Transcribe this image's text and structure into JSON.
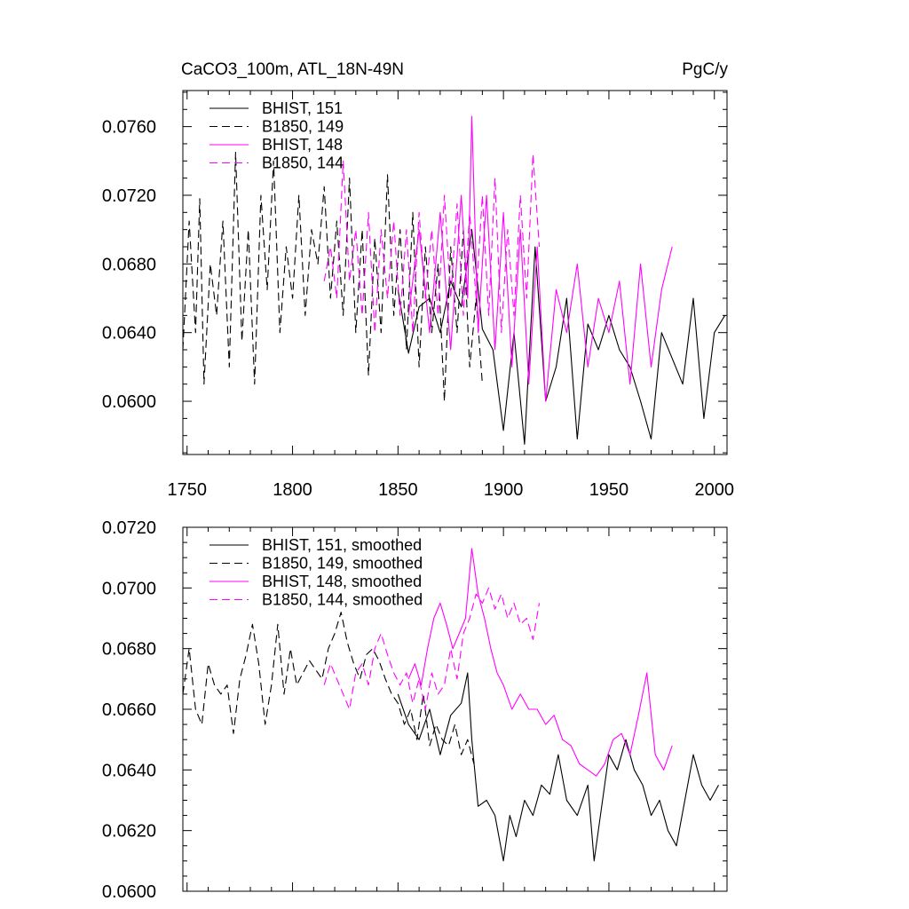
{
  "chart_data": [
    {
      "type": "line",
      "title": "CaCO3_100m, ATL_18N-49N",
      "units": "PgC/y",
      "xlim": [
        1748,
        2006
      ],
      "ylim": [
        0.0569,
        0.0781
      ],
      "x_ticks": [
        1750,
        1800,
        1850,
        1900,
        1950,
        2000
      ],
      "y_ticks": [
        0.06,
        0.064,
        0.068,
        0.072,
        0.076
      ],
      "y_tick_labels": [
        "0.0600",
        "0.0640",
        "0.0680",
        "0.0720",
        "0.0760"
      ],
      "x_tick_labels": [
        "1750",
        "1800",
        "1850",
        "1900",
        "1950",
        "2000"
      ],
      "legend_placement": "top-left",
      "series": [
        {
          "name": "BHIST, 151",
          "color": "#000000",
          "dash": "solid",
          "x": [
            1850,
            1855,
            1860,
            1865,
            1870,
            1875,
            1880,
            1885,
            1890,
            1895,
            1900,
            1905,
            1910,
            1915,
            1920,
            1925,
            1930,
            1935,
            1940,
            1945,
            1950,
            1955,
            1960,
            1965,
            1970,
            1975,
            1980,
            1985,
            1990,
            1995,
            2000,
            2005
          ],
          "y": [
            0.0665,
            0.0628,
            0.0655,
            0.066,
            0.064,
            0.067,
            0.0655,
            0.07,
            0.0642,
            0.063,
            0.0583,
            0.064,
            0.0575,
            0.069,
            0.06,
            0.062,
            0.066,
            0.0578,
            0.0645,
            0.063,
            0.065,
            0.063,
            0.062,
            0.06,
            0.0578,
            0.064,
            0.0625,
            0.061,
            0.066,
            0.059,
            0.064,
            0.065
          ]
        },
        {
          "name": "B1850, 149",
          "color": "#000000",
          "dash": "dashed",
          "x": [
            1748,
            1751,
            1754,
            1756,
            1758,
            1761,
            1764,
            1767,
            1770,
            1773,
            1776,
            1779,
            1782,
            1785,
            1788,
            1791,
            1794,
            1797,
            1800,
            1803,
            1806,
            1809,
            1812,
            1815,
            1818,
            1821,
            1824,
            1827,
            1830,
            1833,
            1836,
            1839,
            1842,
            1845,
            1848,
            1851,
            1854,
            1857,
            1860,
            1863,
            1866,
            1869,
            1872,
            1875,
            1878,
            1881,
            1884,
            1887,
            1890
          ],
          "y": [
            0.063,
            0.0705,
            0.064,
            0.0718,
            0.061,
            0.068,
            0.065,
            0.0705,
            0.062,
            0.0745,
            0.0635,
            0.07,
            0.061,
            0.072,
            0.0665,
            0.074,
            0.064,
            0.069,
            0.066,
            0.072,
            0.065,
            0.07,
            0.068,
            0.0725,
            0.066,
            0.0705,
            0.065,
            0.073,
            0.064,
            0.07,
            0.0615,
            0.0695,
            0.064,
            0.0732,
            0.065,
            0.07,
            0.063,
            0.071,
            0.062,
            0.069,
            0.064,
            0.068,
            0.06,
            0.069,
            0.064,
            0.07,
            0.062,
            0.066,
            0.061
          ]
        },
        {
          "name": "BHIST, 148",
          "color": "#ff00ff",
          "dash": "solid",
          "x": [
            1855,
            1860,
            1865,
            1870,
            1875,
            1880,
            1883,
            1885,
            1888,
            1892,
            1896,
            1900,
            1904,
            1908,
            1912,
            1916,
            1920,
            1925,
            1930,
            1935,
            1940,
            1945,
            1950,
            1955,
            1960,
            1965,
            1970,
            1975,
            1980
          ],
          "y": [
            0.065,
            0.07,
            0.064,
            0.071,
            0.063,
            0.072,
            0.066,
            0.0766,
            0.064,
            0.072,
            0.063,
            0.071,
            0.062,
            0.07,
            0.061,
            0.069,
            0.06,
            0.0665,
            0.064,
            0.068,
            0.062,
            0.066,
            0.064,
            0.067,
            0.061,
            0.068,
            0.062,
            0.0665,
            0.069
          ]
        },
        {
          "name": "B1850, 144",
          "color": "#ff00ff",
          "dash": "dashed",
          "x": [
            1815,
            1818,
            1821,
            1824,
            1827,
            1830,
            1833,
            1836,
            1839,
            1842,
            1845,
            1848,
            1851,
            1854,
            1857,
            1860,
            1863,
            1866,
            1869,
            1872,
            1875,
            1878,
            1881,
            1884,
            1887,
            1890,
            1893,
            1896,
            1899,
            1902,
            1905,
            1908,
            1911,
            1914,
            1917
          ],
          "y": [
            0.067,
            0.069,
            0.066,
            0.074,
            0.067,
            0.07,
            0.065,
            0.071,
            0.064,
            0.07,
            0.066,
            0.0705,
            0.065,
            0.07,
            0.064,
            0.071,
            0.066,
            0.07,
            0.065,
            0.072,
            0.066,
            0.0715,
            0.065,
            0.071,
            0.066,
            0.072,
            0.065,
            0.073,
            0.064,
            0.07,
            0.065,
            0.072,
            0.066,
            0.0744,
            0.069
          ]
        }
      ]
    },
    {
      "type": "line",
      "xlim": [
        1748,
        2006
      ],
      "ylim": [
        0.06,
        0.072
      ],
      "x_ticks": [
        1750,
        1800,
        1850,
        1900,
        1950,
        2000
      ],
      "y_ticks": [
        0.06,
        0.062,
        0.064,
        0.066,
        0.068,
        0.07,
        0.072
      ],
      "y_tick_labels": [
        "0.0600",
        "0.0620",
        "0.0640",
        "0.0660",
        "0.0680",
        "0.0700",
        "0.0720"
      ],
      "legend_placement": "top-left",
      "series": [
        {
          "name": "BHIST, 151, smoothed",
          "color": "#000000",
          "dash": "solid",
          "x": [
            1850,
            1855,
            1860,
            1865,
            1870,
            1875,
            1880,
            1883,
            1885,
            1888,
            1892,
            1896,
            1900,
            1903,
            1906,
            1910,
            1914,
            1918,
            1922,
            1926,
            1930,
            1935,
            1940,
            1943,
            1946,
            1950,
            1954,
            1958,
            1962,
            1966,
            1970,
            1974,
            1978,
            1982,
            1986,
            1990,
            1994,
            1998,
            2002
          ],
          "y": [
            0.0665,
            0.0655,
            0.065,
            0.066,
            0.0645,
            0.0658,
            0.0662,
            0.0672,
            0.065,
            0.0628,
            0.063,
            0.0625,
            0.061,
            0.0625,
            0.0618,
            0.063,
            0.0625,
            0.0635,
            0.0632,
            0.0645,
            0.063,
            0.0625,
            0.0635,
            0.061,
            0.0625,
            0.0645,
            0.064,
            0.065,
            0.064,
            0.0635,
            0.0625,
            0.063,
            0.062,
            0.0615,
            0.063,
            0.0645,
            0.0635,
            0.063,
            0.0635
          ]
        },
        {
          "name": "B1850, 149, smoothed",
          "color": "#000000",
          "dash": "dashed",
          "x": [
            1748,
            1751,
            1754,
            1757,
            1760,
            1763,
            1766,
            1769,
            1772,
            1775,
            1778,
            1781,
            1784,
            1787,
            1790,
            1793,
            1796,
            1799,
            1802,
            1805,
            1808,
            1811,
            1814,
            1817,
            1820,
            1823,
            1826,
            1829,
            1832,
            1835,
            1838,
            1841,
            1844,
            1847,
            1850,
            1853,
            1856,
            1859,
            1862,
            1865,
            1868,
            1871,
            1874,
            1877,
            1880,
            1883,
            1886
          ],
          "y": [
            0.0665,
            0.068,
            0.066,
            0.0655,
            0.0675,
            0.0668,
            0.0665,
            0.0668,
            0.0652,
            0.067,
            0.0678,
            0.0688,
            0.0675,
            0.0655,
            0.0668,
            0.0688,
            0.0665,
            0.068,
            0.0668,
            0.0672,
            0.0676,
            0.0673,
            0.067,
            0.068,
            0.0685,
            0.0692,
            0.0682,
            0.0675,
            0.067,
            0.0678,
            0.068,
            0.0676,
            0.067,
            0.0665,
            0.0662,
            0.0655,
            0.066,
            0.065,
            0.0665,
            0.0648,
            0.0655,
            0.065,
            0.0648,
            0.0655,
            0.0645,
            0.065,
            0.0642
          ]
        },
        {
          "name": "BHIST, 148, smoothed",
          "color": "#ff00ff",
          "dash": "solid",
          "x": [
            1855,
            1858,
            1861,
            1864,
            1867,
            1870,
            1873,
            1876,
            1879,
            1882,
            1885,
            1888,
            1891,
            1894,
            1897,
            1900,
            1904,
            1908,
            1912,
            1916,
            1920,
            1924,
            1928,
            1932,
            1936,
            1940,
            1944,
            1948,
            1952,
            1956,
            1960,
            1964,
            1968,
            1972,
            1976,
            1980
          ],
          "y": [
            0.067,
            0.0675,
            0.0668,
            0.068,
            0.069,
            0.0695,
            0.0688,
            0.068,
            0.0685,
            0.069,
            0.0713,
            0.0698,
            0.069,
            0.068,
            0.0672,
            0.0668,
            0.066,
            0.0665,
            0.066,
            0.066,
            0.0655,
            0.0658,
            0.065,
            0.0648,
            0.0642,
            0.064,
            0.0638,
            0.0642,
            0.065,
            0.0652,
            0.0645,
            0.0658,
            0.0672,
            0.0645,
            0.064,
            0.0648
          ]
        },
        {
          "name": "B1850, 144, smoothed",
          "color": "#ff00ff",
          "dash": "dashed",
          "x": [
            1815,
            1818,
            1821,
            1824,
            1827,
            1830,
            1833,
            1836,
            1839,
            1842,
            1845,
            1848,
            1851,
            1854,
            1857,
            1860,
            1863,
            1866,
            1869,
            1872,
            1875,
            1878,
            1881,
            1884,
            1887,
            1890,
            1893,
            1896,
            1899,
            1902,
            1905,
            1908,
            1911,
            1914,
            1917
          ],
          "y": [
            0.0668,
            0.0675,
            0.067,
            0.0665,
            0.066,
            0.0672,
            0.0675,
            0.0668,
            0.068,
            0.0685,
            0.0678,
            0.0672,
            0.0668,
            0.0672,
            0.0662,
            0.067,
            0.066,
            0.0672,
            0.0665,
            0.0668,
            0.068,
            0.067,
            0.0685,
            0.069,
            0.0698,
            0.0695,
            0.07,
            0.0693,
            0.0698,
            0.069,
            0.0695,
            0.0688,
            0.069,
            0.0683,
            0.0695
          ]
        }
      ]
    }
  ]
}
